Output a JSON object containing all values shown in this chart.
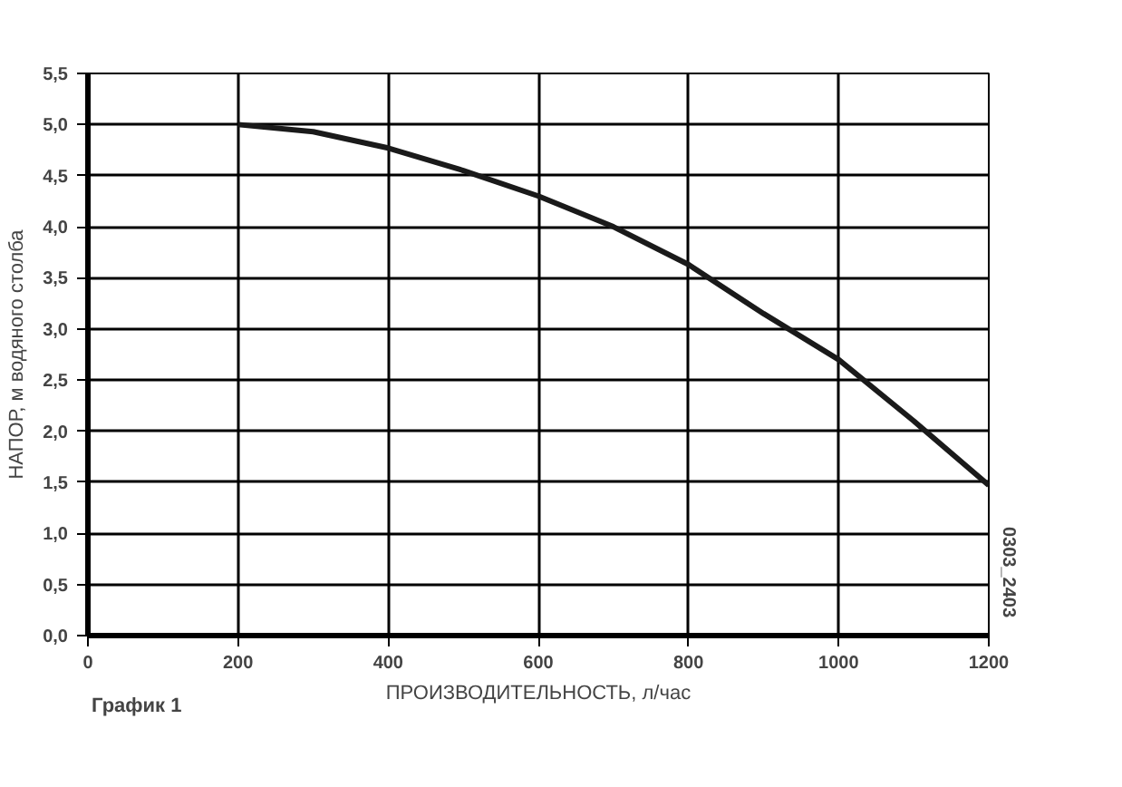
{
  "chart_data": {
    "type": "line",
    "xlabel": "ПРОИЗВОДИТЕЛЬНОСТЬ, л/час",
    "ylabel": "НАПОР, м водяного столба",
    "annotations": [
      "График 1",
      "0303_2403"
    ],
    "x": [
      200,
      300,
      400,
      500,
      600,
      700,
      800,
      900,
      1000,
      1100,
      1200
    ],
    "series": [
      {
        "color": "#1a1a1a",
        "values": [
          5.0,
          4.93,
          4.77,
          4.55,
          4.3,
          4.0,
          3.63,
          3.15,
          2.7,
          2.1,
          1.47
        ]
      }
    ],
    "xlim": [
      0,
      1200
    ],
    "ylim": [
      0,
      5.5
    ],
    "xticks": [
      0,
      200,
      400,
      600,
      800,
      1000,
      1200
    ],
    "yticks": [
      {
        "value": 0,
        "label": "0,0"
      },
      {
        "value": 0.5,
        "label": "0,5"
      },
      {
        "value": 1,
        "label": "1,0"
      },
      {
        "value": 1.5,
        "label": "1,5"
      },
      {
        "value": 2,
        "label": "2,0"
      },
      {
        "value": 2.5,
        "label": "2,5"
      },
      {
        "value": 3,
        "label": "3,0"
      },
      {
        "value": 3.5,
        "label": "3,5"
      },
      {
        "value": 4,
        "label": "4,0"
      },
      {
        "value": 4.5,
        "label": "4,5"
      },
      {
        "value": 5,
        "label": "5,0"
      },
      {
        "value": 5.5,
        "label": "5,5"
      }
    ],
    "grid": true,
    "marker": "none",
    "line_style": "solid"
  }
}
